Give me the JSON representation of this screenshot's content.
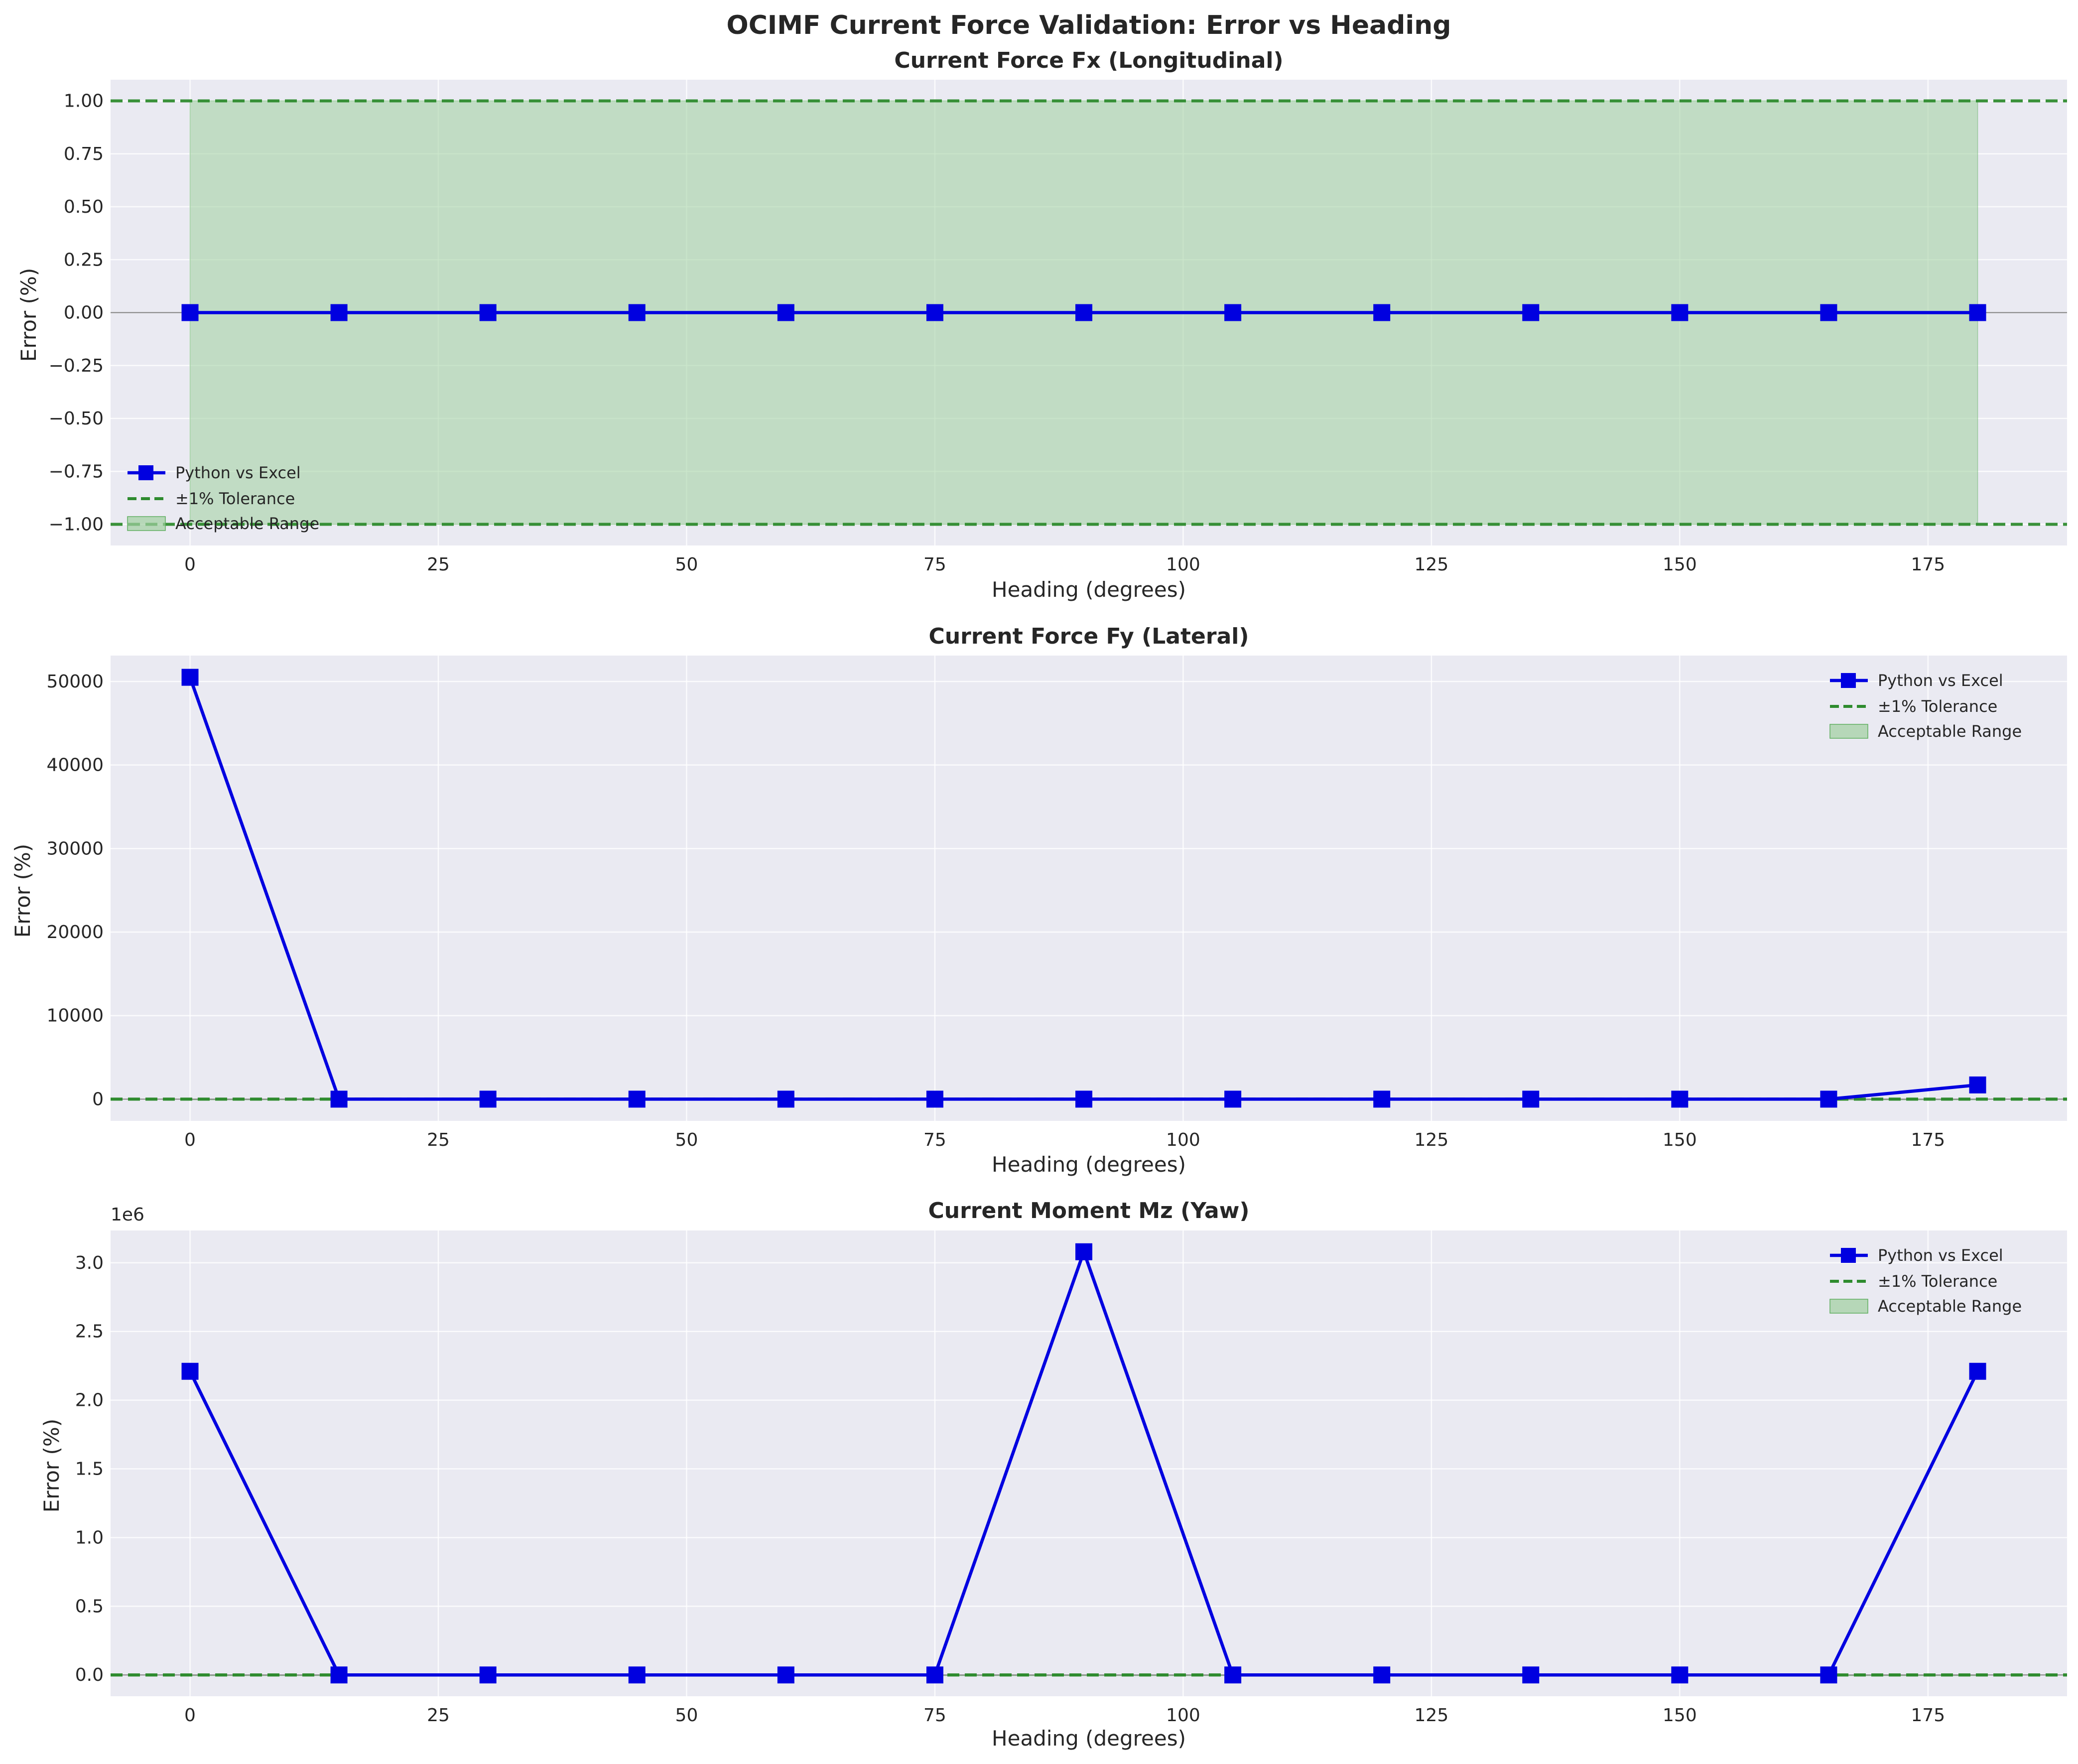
{
  "suptitle": "OCIMF Current Force Validation: Error vs Heading",
  "colors": {
    "axes_bg": "#eaeaf2",
    "grid": "#ffffff",
    "series": "#0000e0",
    "tolerance": "#2e8b2e",
    "band": "#9fcf9f",
    "zero_line": "#7f7f7f"
  },
  "legend": {
    "series": "Python vs Excel",
    "tolerance": "±1% Tolerance",
    "band": "Acceptable Range"
  },
  "chart_data": [
    {
      "type": "line",
      "title": "Current Force Fx (Longitudinal)",
      "xlabel": "Heading (degrees)",
      "ylabel": "Error (%)",
      "x": [
        0,
        15,
        30,
        45,
        60,
        75,
        90,
        105,
        120,
        135,
        150,
        165,
        180
      ],
      "series": [
        {
          "name": "Python vs Excel",
          "values": [
            0,
            0,
            0,
            0,
            0,
            0,
            0,
            0,
            0,
            0,
            0,
            0,
            0
          ]
        }
      ],
      "tolerance": [
        -1,
        1
      ],
      "xlim": [
        -8,
        189
      ],
      "ylim": [
        -1.1,
        1.1
      ],
      "xticks": [
        0,
        25,
        50,
        75,
        100,
        125,
        150,
        175
      ],
      "yticks": [
        -1.0,
        -0.75,
        -0.5,
        -0.25,
        0.0,
        0.25,
        0.5,
        0.75,
        1.0
      ],
      "ytick_labels": [
        "−1.00",
        "−0.75",
        "−0.50",
        "−0.25",
        "0.00",
        "0.25",
        "0.50",
        "0.75",
        "1.00"
      ],
      "offset_label": "",
      "legend_position": "lower-left"
    },
    {
      "type": "line",
      "title": "Current Force Fy (Lateral)",
      "xlabel": "Heading (degrees)",
      "ylabel": "Error (%)",
      "x": [
        0,
        15,
        30,
        45,
        60,
        75,
        90,
        105,
        120,
        135,
        150,
        165,
        180
      ],
      "series": [
        {
          "name": "Python vs Excel",
          "values": [
            50500,
            0,
            0,
            0,
            0,
            0,
            0,
            0,
            0,
            0,
            0,
            0,
            1700
          ]
        }
      ],
      "tolerance": [
        -1,
        1
      ],
      "xlim": [
        -8,
        189
      ],
      "ylim": [
        -2600,
        53100
      ],
      "xticks": [
        0,
        25,
        50,
        75,
        100,
        125,
        150,
        175
      ],
      "yticks": [
        0,
        10000,
        20000,
        30000,
        40000,
        50000
      ],
      "ytick_labels": [
        "0",
        "10000",
        "20000",
        "30000",
        "40000",
        "50000"
      ],
      "offset_label": "",
      "legend_position": "upper-right"
    },
    {
      "type": "line",
      "title": "Current Moment Mz (Yaw)",
      "xlabel": "Heading (degrees)",
      "ylabel": "Error (%)",
      "x": [
        0,
        15,
        30,
        45,
        60,
        75,
        90,
        105,
        120,
        135,
        150,
        165,
        180
      ],
      "series": [
        {
          "name": "Python vs Excel",
          "values": [
            2210000,
            0,
            0,
            0,
            0,
            0,
            3080000,
            0,
            0,
            0,
            0,
            0,
            2210000
          ]
        }
      ],
      "tolerance": [
        -1,
        1
      ],
      "xlim": [
        -8,
        189
      ],
      "ylim": [
        -155000,
        3235000
      ],
      "xticks": [
        0,
        25,
        50,
        75,
        100,
        125,
        150,
        175
      ],
      "yticks": [
        0,
        500000,
        1000000,
        1500000,
        2000000,
        2500000,
        3000000
      ],
      "ytick_labels": [
        "0.0",
        "0.5",
        "1.0",
        "1.5",
        "2.0",
        "2.5",
        "3.0"
      ],
      "offset_label": "1e6",
      "legend_position": "upper-right"
    }
  ]
}
